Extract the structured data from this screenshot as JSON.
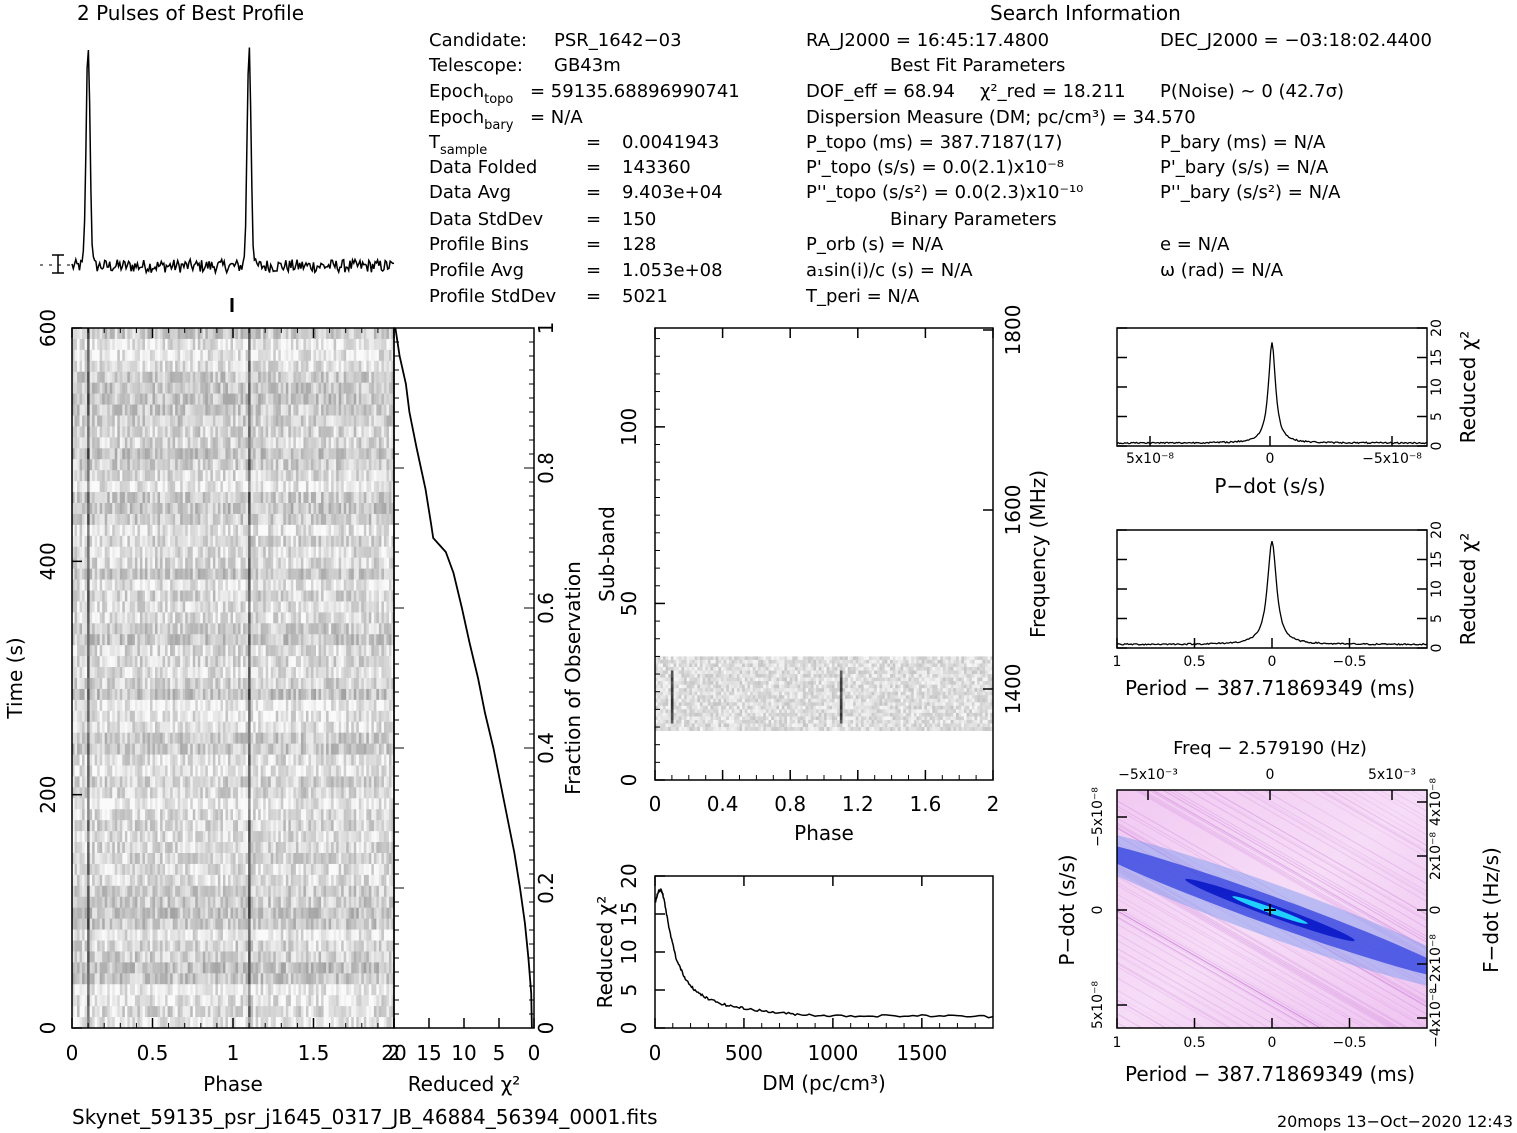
{
  "figure": {
    "profile_title": "2 Pulses of Best Profile",
    "search_title": "Search Information",
    "filename": "Skynet_59135_psr_j1645_0317_JB_46884_56394_0001.fits",
    "footer_right": "20mops 13−Oct−2020 12:43"
  },
  "info_left": [
    {
      "k": "Candidate:",
      "v": "PSR_1642−03"
    },
    {
      "k": "Telescope:",
      "v": "GB43m"
    },
    {
      "k": "Epoch",
      "sub": "topo",
      "v": "= 59135.68896990741"
    },
    {
      "k": "Epoch",
      "sub": "bary",
      "v": "= N/A"
    },
    {
      "k": "T",
      "sub": "sample",
      "v": "=",
      "v2": "0.0041943"
    },
    {
      "k": "Data Folded",
      "v": "=",
      "v2": "143360"
    },
    {
      "k": "Data Avg",
      "v": "=",
      "v2": "9.403e+04"
    },
    {
      "k": "Data StdDev",
      "v": "=",
      "v2": "150"
    },
    {
      "k": "Profile Bins",
      "v": "=",
      "v2": "128"
    },
    {
      "k": "Profile Avg",
      "v": "=",
      "v2": "1.053e+08"
    },
    {
      "k": "Profile StdDev",
      "v": "=",
      "v2": "5021"
    }
  ],
  "info_right": {
    "ra": "RA_J2000 = 16:45:17.4800",
    "dec": "DEC_J2000 = −03:18:02.4400",
    "best_fit_title": "Best Fit Parameters",
    "dof": "DOF_eff = 68.94",
    "chi2": "χ²_red = 18.211",
    "pnoise": "P(Noise) ~ 0   (42.7σ)",
    "dm": "Dispersion Measure (DM; pc/cm³) = 34.570",
    "ptopo": "P_topo (ms) =  387.7187(17)",
    "pbary": "P_bary (ms) = N/A",
    "pdtopo": "P'_topo (s/s) = 0.0(2.1)x10⁻⁸",
    "pdbary": "P'_bary (s/s) = N/A",
    "pddtopo": "P''_topo (s/s²) = 0.0(2.3)x10⁻¹⁰",
    "pddbary": "P''_bary (s/s²) = N/A",
    "binary_title": "Binary Parameters",
    "porb": "P_orb (s) = N/A",
    "e": "e = N/A",
    "a1": "a₁sin(i)/c (s) = N/A",
    "omega": "ω (rad) = N/A",
    "tperi": "T_peri = N/A"
  },
  "chart_data": [
    {
      "name": "pulse-profile",
      "type": "line",
      "title": "2 Pulses of Best Profile",
      "x_range": [
        0,
        2
      ],
      "peaks": [
        0.1,
        1.1
      ],
      "baseline": 0.0,
      "peak_height": 1.0
    },
    {
      "name": "time-phase",
      "type": "heatmap",
      "xlabel": "Phase",
      "ylabel": "Time (s)",
      "xticks": [
        "0",
        "0.5",
        "1",
        "1.5",
        "2"
      ],
      "yticks": [
        "0",
        "200",
        "400",
        "600"
      ],
      "xlim": [
        0,
        2
      ],
      "ylim": [
        0,
        600
      ],
      "pulse_phases": [
        0.1,
        1.1
      ]
    },
    {
      "name": "chi2-vs-fraction",
      "type": "line",
      "xlabel": "Reduced χ²",
      "ylabel": "Fraction of Observation",
      "xticks": [
        "20",
        "15",
        "10",
        "5",
        "0"
      ],
      "yticks": [
        "0",
        "0.2",
        "0.4",
        "0.6",
        "0.8",
        "1"
      ],
      "xlim": [
        20,
        0
      ],
      "ylim": [
        0,
        1
      ],
      "x": [
        0.3,
        0.4,
        0.8,
        1.3,
        2.0,
        2.8,
        3.8,
        4.8,
        5.8,
        7.0,
        8.0,
        9.2,
        10.3,
        11.5,
        12.6,
        13.5,
        14.4,
        14.7,
        15.5,
        16.8,
        17.8,
        18.3,
        19.2,
        19.8
      ],
      "y": [
        0.0,
        0.05,
        0.1,
        0.15,
        0.2,
        0.25,
        0.3,
        0.35,
        0.4,
        0.45,
        0.5,
        0.55,
        0.6,
        0.65,
        0.68,
        0.69,
        0.7,
        0.72,
        0.77,
        0.83,
        0.88,
        0.92,
        0.96,
        1.0
      ]
    },
    {
      "name": "subband-phase",
      "type": "heatmap",
      "xlabel": "Phase",
      "ylabel": "Sub-band",
      "y2label": "Frequency (MHz)",
      "xticks": [
        "0",
        "0.4",
        "0.8",
        "1.2",
        "1.6",
        "2"
      ],
      "yticks": [
        "0",
        "50",
        "100"
      ],
      "y2ticks": [
        "1400",
        "1600",
        "1800"
      ],
      "xlim": [
        0,
        2
      ],
      "ylim": [
        0,
        128
      ],
      "band_rows": [
        14,
        35
      ],
      "pulse_phases": [
        0.1,
        1.1
      ]
    },
    {
      "name": "dm-chi2",
      "type": "line",
      "xlabel": "DM (pc/cm³)",
      "ylabel": "Reduced χ²",
      "xticks": [
        "0",
        "500",
        "1000",
        "1500"
      ],
      "yticks": [
        "0",
        "5",
        "10",
        "15",
        "20"
      ],
      "xlim": [
        0,
        1900
      ],
      "ylim": [
        0,
        20
      ],
      "x": [
        0,
        20,
        35,
        50,
        80,
        120,
        170,
        230,
        300,
        400,
        500,
        650,
        800,
        1000,
        1300,
        1600,
        1900
      ],
      "y": [
        16.5,
        18.0,
        18.2,
        17.0,
        13.0,
        9.0,
        6.5,
        4.8,
        3.8,
        3.0,
        2.6,
        2.1,
        1.8,
        1.6,
        1.6,
        1.6,
        1.5
      ]
    },
    {
      "name": "pdot-chi2",
      "type": "line",
      "xlabel": "P−dot (s/s)",
      "y2label": "Reduced χ²",
      "xticks": [
        "5x10⁻⁸",
        "0",
        "−5x10⁻⁸"
      ],
      "yticks": [
        "0",
        "5",
        "10",
        "15",
        "20"
      ],
      "xlim": [
        8e-08,
        -8e-08
      ],
      "ylim": [
        0,
        20
      ],
      "peak": 17.5,
      "floor": 0.5
    },
    {
      "name": "period-chi2",
      "type": "line",
      "xlabel": "Period − 387.71869349 (ms)",
      "y2label": "Reduced χ²",
      "xticks": [
        "1",
        "0.5",
        "0",
        "−0.5"
      ],
      "yticks": [
        "0",
        "5",
        "10",
        "15",
        "20"
      ],
      "xlim": [
        1,
        -1
      ],
      "ylim": [
        0,
        20
      ],
      "peak": 18.0,
      "floor": 0.6
    },
    {
      "name": "pdot-period-plane",
      "type": "heatmap",
      "title": "Freq − 2.579190 (Hz)",
      "xlabel": "Period − 387.71869349 (ms)",
      "ylabel": "P−dot (s/s)",
      "y2label": "F−dot (Hz/s)",
      "xticks": [
        "1",
        "0.5",
        "0",
        "−0.5"
      ],
      "x2ticks": [
        "−5x10⁻³",
        "0",
        "5x10⁻³"
      ],
      "yticks": [
        "5x10⁻⁸",
        "0",
        "−5x10⁻⁸"
      ],
      "y2ticks": [
        "−4x10⁻⁸",
        "−2x10⁻⁸",
        "0",
        "2x10⁻⁸",
        "4x10⁻⁸"
      ],
      "xlim": [
        1,
        -1
      ],
      "ylim": [
        8e-08,
        -8e-08
      ],
      "best": [
        0,
        0
      ]
    }
  ]
}
